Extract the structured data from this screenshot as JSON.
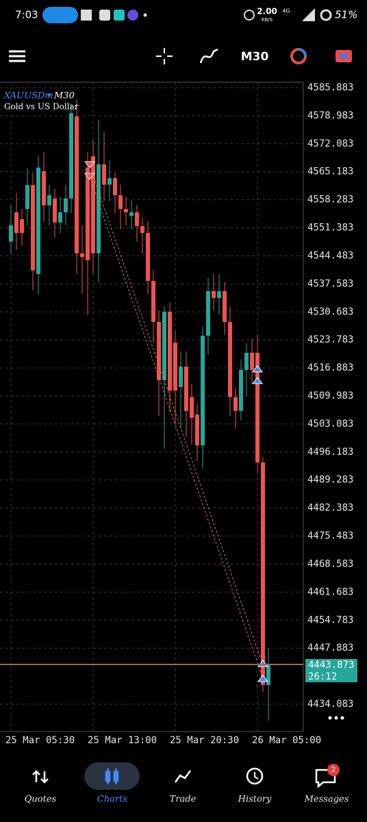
{
  "status_bar": {
    "time": "7:03",
    "speed": "2.00",
    "speed_unit": "KB/S",
    "network": "4G",
    "battery": "51%"
  },
  "toolbar": {
    "timeframe": "M30"
  },
  "chart_data": {
    "type": "candlestick",
    "symbol": "XAUUSDm",
    "timeframe": "M30",
    "subtitle": "Gold vs US Dollar",
    "categories": [
      "25 Mar 05:30",
      null,
      null,
      null,
      null,
      null,
      null,
      null,
      null,
      null,
      null,
      null,
      null,
      null,
      null,
      "25 Mar 13:00",
      null,
      null,
      null,
      null,
      null,
      null,
      null,
      null,
      null,
      null,
      null,
      null,
      null,
      null,
      "25 Mar 20:30",
      null,
      null,
      null,
      null,
      null,
      null,
      null,
      null,
      null,
      null,
      null,
      null,
      null,
      null,
      "26 Mar 05:00",
      null,
      null
    ],
    "open": [
      4548.0,
      4555.2,
      4553.5,
      4556.0,
      4561.9,
      4540.0,
      4565.3,
      4556.9,
      4558.6,
      4552.7,
      4555.2,
      4558.6,
      4578.8,
      4545.1,
      4566.2,
      4569.0,
      4545.1,
      4567.0,
      4562.0,
      4563.6,
      4559.4,
      4556.0,
      4554.3,
      4555.2,
      4551.8,
      4550.1,
      4538.3,
      4528.2,
      4513.9,
      4530.7,
      4523.1,
      4512.2,
      4517.2,
      4509.7,
      4505.4,
      4497.8,
      4524.8,
      4535.8,
      4534.1,
      4535.8,
      4528.2,
      4509.7,
      4506.3,
      4516.4,
      4520.6,
      4520.6,
      4493.6,
      4438.8
    ],
    "high": [
      4557,
      4560,
      4556,
      4566,
      4565,
      4569,
      4570,
      4562,
      4561,
      4559,
      4562,
      4582,
      4583,
      4552,
      4570,
      4573,
      4578,
      4575,
      4568,
      4565,
      4562,
      4559,
      4558,
      4557,
      4554,
      4553,
      4541,
      4531,
      4532,
      4533,
      4526,
      4521,
      4521,
      4513,
      4508,
      4527,
      4539,
      4540,
      4540,
      4538,
      4532,
      4512,
      4519,
      4523,
      4524,
      4525,
      4495,
      4448
    ],
    "low": [
      4545,
      4546,
      4547,
      4552,
      4536,
      4535,
      4553,
      4552,
      4549,
      4550,
      4552,
      4555,
      4540,
      4535,
      4530,
      4540,
      4538,
      4558,
      4558,
      4555,
      4551,
      4552,
      4551,
      4548,
      4545,
      4535,
      4523,
      4505,
      4497,
      4506,
      4503,
      4502,
      4500,
      4498,
      4494,
      4492,
      4520,
      4531,
      4530,
      4525,
      4505,
      4502,
      4504,
      4510,
      4513,
      4491,
      4437,
      4430
    ],
    "close": [
      4552.0,
      4550.1,
      4550.1,
      4561.9,
      4540.9,
      4566.2,
      4556.9,
      4559.4,
      4552.7,
      4555.2,
      4558.6,
      4579.6,
      4545.1,
      4544.2,
      4543.4,
      4545.1,
      4567.0,
      4562.0,
      4563.6,
      4559.4,
      4556.0,
      4555.2,
      4555.2,
      4551.8,
      4550.1,
      4538.3,
      4528.2,
      4513.9,
      4530.7,
      4511.3,
      4511.3,
      4517.2,
      4506.3,
      4504.6,
      4497.8,
      4524.8,
      4535.8,
      4534.1,
      4535.8,
      4528.2,
      4509.7,
      4506.3,
      4516.4,
      4520.6,
      4516.4,
      4493.6,
      4438.8,
      4443.873
    ],
    "up_color": "#26a69a",
    "down_color": "#f0534f",
    "ylim": [
      4427.34,
      4587.23
    ],
    "yticks": [
      4585.883,
      4578.983,
      4572.083,
      4565.183,
      4558.283,
      4551.383,
      4544.483,
      4537.583,
      4530.683,
      4523.783,
      4516.883,
      4509.983,
      4503.083,
      4496.183,
      4489.283,
      4482.383,
      4475.483,
      4468.583,
      4461.683,
      4454.783,
      4447.883,
      4434.083
    ],
    "grid": true,
    "current_price": 4443.873,
    "countdown": "26:12"
  },
  "nav": {
    "items": [
      {
        "label": "Quotes"
      },
      {
        "label": "Charts"
      },
      {
        "label": "Trade"
      },
      {
        "label": "History"
      },
      {
        "label": "Messages"
      }
    ],
    "messages_badge": 2
  }
}
